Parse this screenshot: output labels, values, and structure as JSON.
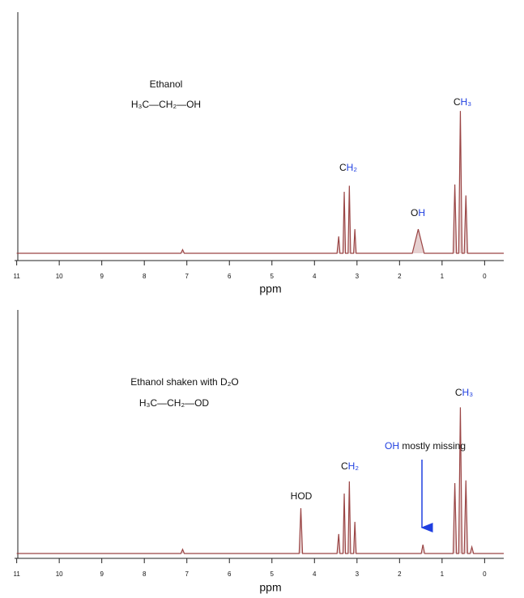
{
  "chart_data": [
    {
      "type": "line",
      "xlabel": "ppm",
      "xlim": [
        11.05,
        -0.45
      ],
      "xticks": [
        11,
        10,
        9,
        8,
        7,
        6,
        5,
        4,
        3,
        2,
        1,
        0
      ],
      "ylim": [
        0,
        100
      ],
      "series": [
        {
          "color": "#9a4545",
          "x": [
            11,
            7.14,
            7.1,
            7.06,
            3.47,
            3.43,
            3.4,
            3.33,
            3.3,
            3.27,
            3.21,
            3.18,
            3.15,
            3.08,
            3.05,
            3.02,
            1.7,
            1.56,
            1.42,
            0.74,
            0.7,
            0.66,
            0.61,
            0.57,
            0.53,
            0.48,
            0.44,
            0.4,
            -0.45
          ],
          "values": [
            0,
            0,
            1.5,
            0,
            0,
            7,
            0,
            0,
            25.5,
            0,
            0,
            28,
            0,
            0,
            10,
            0,
            0,
            10,
            0,
            0,
            28.5,
            0,
            0,
            59,
            0,
            0,
            24,
            0,
            0
          ]
        }
      ],
      "annotations": [
        {
          "parts": [
            {
              "text": "Ethanol"
            }
          ]
        },
        {
          "parts": [
            {
              "text": "H₃C—CH₂—OH"
            }
          ]
        },
        {
          "parts": [
            {
              "text": "C"
            },
            {
              "text": "H₂",
              "color": "#1f3fe0"
            }
          ]
        },
        {
          "parts": [
            {
              "text": "O"
            },
            {
              "text": "H",
              "color": "#1f3fe0"
            }
          ]
        },
        {
          "parts": [
            {
              "text": "C"
            },
            {
              "text": "H₃",
              "color": "#1f3fe0"
            }
          ]
        }
      ]
    },
    {
      "type": "line",
      "xlabel": "ppm",
      "xlim": [
        11.05,
        -0.45
      ],
      "xticks": [
        11,
        10,
        9,
        8,
        7,
        6,
        5,
        4,
        3,
        2,
        1,
        0
      ],
      "ylim": [
        0,
        100
      ],
      "series": [
        {
          "color": "#9a4545",
          "x": [
            11,
            7.14,
            7.1,
            7.06,
            4.36,
            4.32,
            4.28,
            3.47,
            3.43,
            3.4,
            3.33,
            3.3,
            3.27,
            3.21,
            3.18,
            3.15,
            3.08,
            3.05,
            3.02,
            1.49,
            1.45,
            1.41,
            0.74,
            0.7,
            0.66,
            0.61,
            0.57,
            0.53,
            0.48,
            0.44,
            0.4,
            0.34,
            0.3,
            0.26,
            -0.45
          ],
          "values": [
            0,
            0,
            1.7,
            0,
            0,
            18.6,
            0,
            0,
            8,
            0,
            0,
            24.6,
            0,
            0,
            29.6,
            0,
            0,
            13,
            0,
            0,
            3.6,
            0,
            0,
            28.9,
            0,
            0,
            60,
            0,
            0,
            30,
            0,
            0,
            2.7,
            0,
            0
          ]
        }
      ],
      "annotations": [
        {
          "parts": [
            {
              "text": "Ethanol shaken with D₂O"
            }
          ]
        },
        {
          "parts": [
            {
              "text": "H₃C—CH₂—OD"
            }
          ]
        },
        {
          "parts": [
            {
              "text": "HOD"
            }
          ]
        },
        {
          "parts": [
            {
              "text": "C"
            },
            {
              "text": "H₂",
              "color": "#1f3fe0"
            }
          ]
        },
        {
          "parts": [
            {
              "text": "O",
              "color": "#1f3fe0"
            },
            {
              "text": "H",
              "color": "#1f3fe0"
            },
            {
              "text": " mostly missing"
            }
          ]
        },
        {
          "parts": [
            {
              "text": "C"
            },
            {
              "text": "H₃",
              "color": "#1f3fe0"
            }
          ]
        }
      ]
    }
  ]
}
